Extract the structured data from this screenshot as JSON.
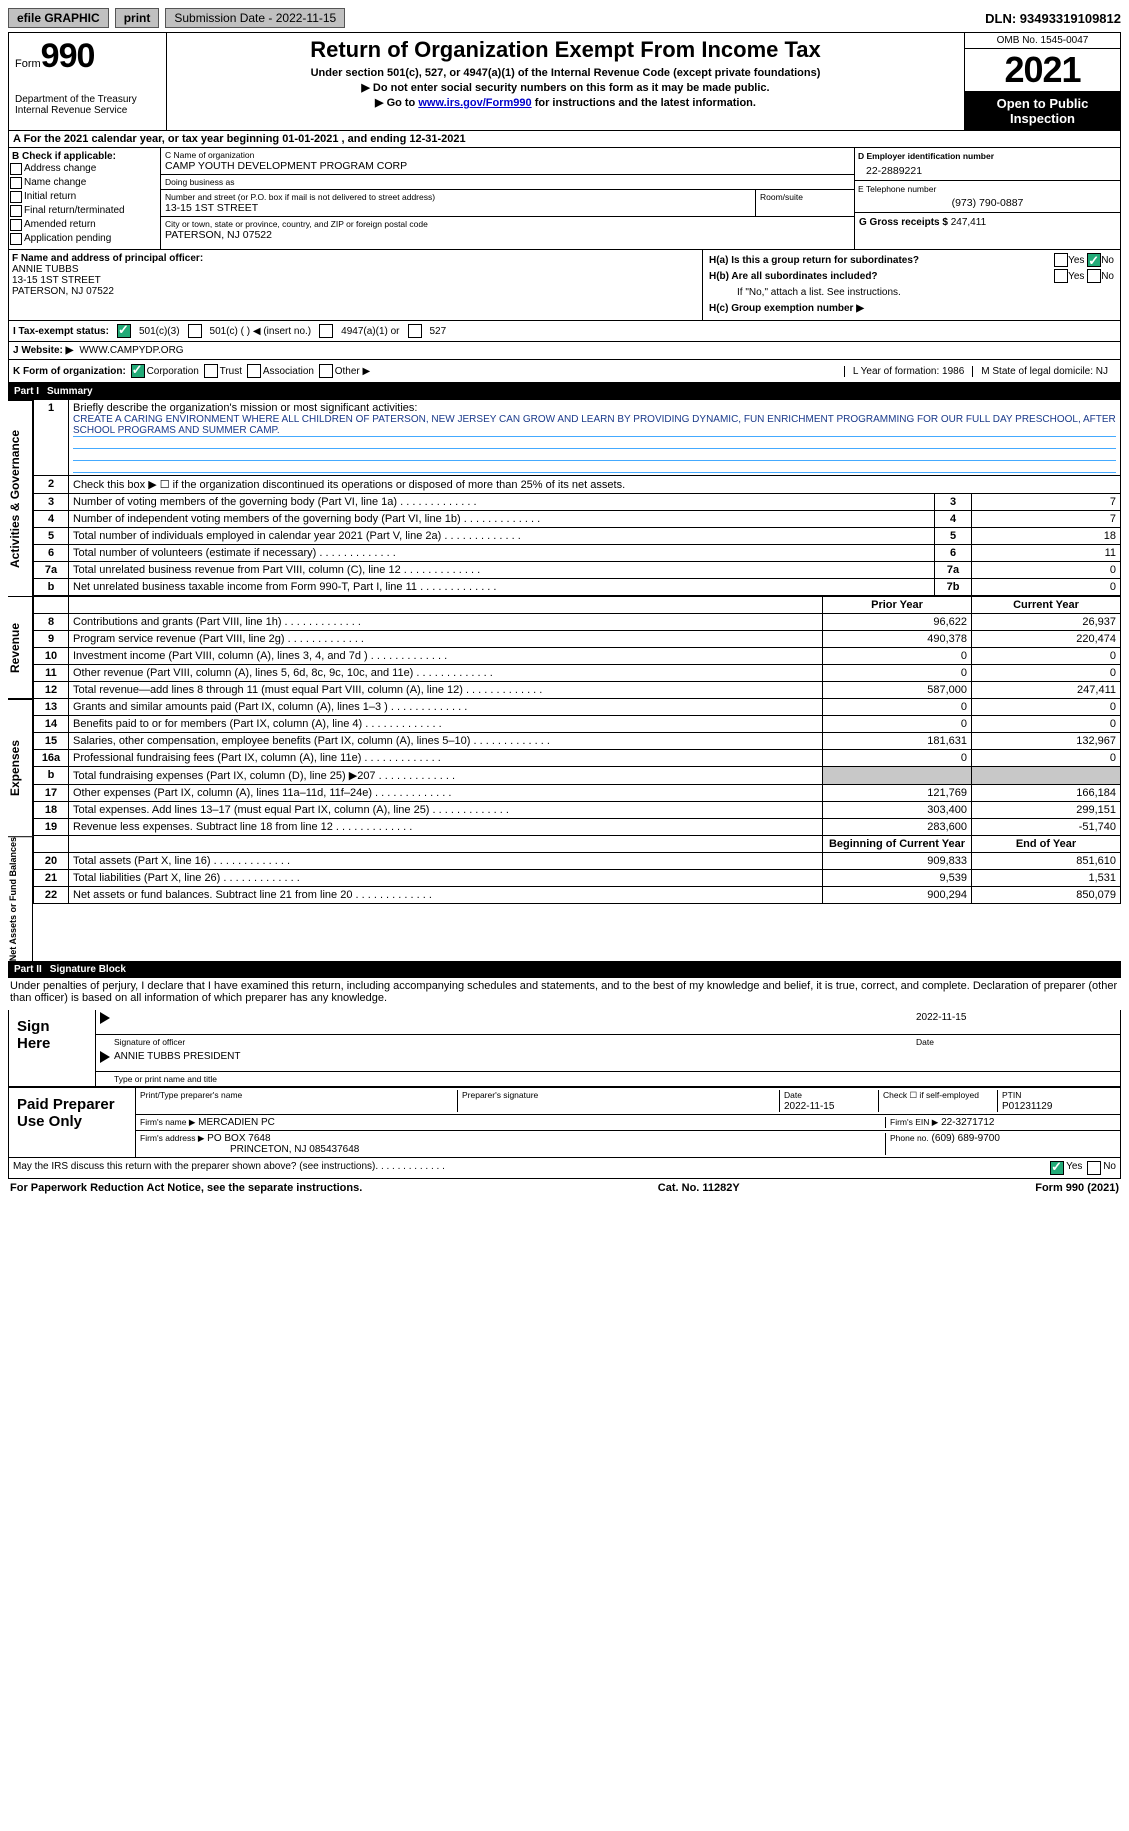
{
  "topbar": {
    "efile": "efile GRAPHIC",
    "print": "print",
    "subdate_label": "Submission Date - 2022-11-15",
    "dln": "DLN: 93493319109812"
  },
  "header": {
    "form_word": "Form",
    "form_num": "990",
    "dept": "Department of the Treasury\nInternal Revenue Service",
    "title": "Return of Organization Exempt From Income Tax",
    "subtitle": "Under section 501(c), 527, or 4947(a)(1) of the Internal Revenue Code (except private foundations)",
    "line1": "▶ Do not enter social security numbers on this form as it may be made public.",
    "line2_pre": "▶ Go to ",
    "line2_link": "www.irs.gov/Form990",
    "line2_post": " for instructions and the latest information.",
    "omb": "OMB No. 1545-0047",
    "year": "2021",
    "open": "Open to Public Inspection"
  },
  "rowA": "A  For the 2021 calendar year, or tax year beginning 01-01-2021   , and ending 12-31-2021",
  "B": {
    "label": "B Check if applicable:",
    "opts": [
      "Address change",
      "Name change",
      "Initial return",
      "Final return/terminated",
      "Amended return",
      "Application pending"
    ]
  },
  "C": {
    "name_label": "C Name of organization",
    "name": "CAMP YOUTH DEVELOPMENT PROGRAM CORP",
    "dba_label": "Doing business as",
    "dba": "",
    "addr_label": "Number and street (or P.O. box if mail is not delivered to street address)",
    "addr": "13-15 1ST STREET",
    "room_label": "Room/suite",
    "city_label": "City or town, state or province, country, and ZIP or foreign postal code",
    "city": "PATERSON, NJ  07522"
  },
  "D": {
    "label": "D Employer identification number",
    "val": "22-2889221"
  },
  "E": {
    "label": "E Telephone number",
    "val": "(973) 790-0887"
  },
  "G": {
    "label": "G Gross receipts $",
    "val": "247,411"
  },
  "F": {
    "label": "F  Name and address of principal officer:",
    "name": "ANNIE TUBBS",
    "addr1": "13-15 1ST STREET",
    "addr2": "PATERSON, NJ  07522"
  },
  "H": {
    "a": "H(a)  Is this a group return for subordinates?",
    "b": "H(b)  Are all subordinates included?",
    "bnote": "If \"No,\" attach a list. See instructions.",
    "c": "H(c)  Group exemption number ▶",
    "yes": "Yes",
    "no": "No"
  },
  "I": {
    "label": "I   Tax-exempt status:",
    "o1": "501(c)(3)",
    "o2": "501(c) (  ) ◀ (insert no.)",
    "o3": "4947(a)(1) or",
    "o4": "527"
  },
  "J": {
    "label": "J   Website: ▶",
    "val": "WWW.CAMPYDP.ORG"
  },
  "K": {
    "label": "K Form of organization:",
    "o1": "Corporation",
    "o2": "Trust",
    "o3": "Association",
    "o4": "Other ▶"
  },
  "L": {
    "label": "L Year of formation: 1986"
  },
  "M": {
    "label": "M State of legal domicile: NJ"
  },
  "part1": {
    "num": "Part I",
    "title": "Summary"
  },
  "summary": {
    "l1": "Briefly describe the organization's mission or most significant activities:",
    "mission": "CREATE A CARING ENVIRONMENT WHERE ALL CHILDREN OF PATERSON, NEW JERSEY CAN GROW AND LEARN BY PROVIDING DYNAMIC, FUN ENRICHMENT PROGRAMMING FOR OUR FULL DAY PRESCHOOL, AFTER SCHOOL PROGRAMS AND SUMMER CAMP.",
    "l2": "Check this box ▶ ☐ if the organization discontinued its operations or disposed of more than 25% of its net assets.",
    "rows_gov": [
      {
        "n": "3",
        "t": "Number of voting members of the governing body (Part VI, line 1a)",
        "box": "3",
        "v": "7"
      },
      {
        "n": "4",
        "t": "Number of independent voting members of the governing body (Part VI, line 1b)",
        "box": "4",
        "v": "7"
      },
      {
        "n": "5",
        "t": "Total number of individuals employed in calendar year 2021 (Part V, line 2a)",
        "box": "5",
        "v": "18"
      },
      {
        "n": "6",
        "t": "Total number of volunteers (estimate if necessary)",
        "box": "6",
        "v": "11"
      },
      {
        "n": "7a",
        "t": "Total unrelated business revenue from Part VIII, column (C), line 12",
        "box": "7a",
        "v": "0"
      },
      {
        "n": "b",
        "t": "Net unrelated business taxable income from Form 990-T, Part I, line 11",
        "box": "7b",
        "v": "0"
      }
    ],
    "hdr_prior": "Prior Year",
    "hdr_cur": "Current Year",
    "rows_rev": [
      {
        "n": "8",
        "t": "Contributions and grants (Part VIII, line 1h)",
        "p": "96,622",
        "c": "26,937"
      },
      {
        "n": "9",
        "t": "Program service revenue (Part VIII, line 2g)",
        "p": "490,378",
        "c": "220,474"
      },
      {
        "n": "10",
        "t": "Investment income (Part VIII, column (A), lines 3, 4, and 7d )",
        "p": "0",
        "c": "0"
      },
      {
        "n": "11",
        "t": "Other revenue (Part VIII, column (A), lines 5, 6d, 8c, 9c, 10c, and 11e)",
        "p": "0",
        "c": "0"
      },
      {
        "n": "12",
        "t": "Total revenue—add lines 8 through 11 (must equal Part VIII, column (A), line 12)",
        "p": "587,000",
        "c": "247,411"
      }
    ],
    "rows_exp": [
      {
        "n": "13",
        "t": "Grants and similar amounts paid (Part IX, column (A), lines 1–3 )",
        "p": "0",
        "c": "0"
      },
      {
        "n": "14",
        "t": "Benefits paid to or for members (Part IX, column (A), line 4)",
        "p": "0",
        "c": "0"
      },
      {
        "n": "15",
        "t": "Salaries, other compensation, employee benefits (Part IX, column (A), lines 5–10)",
        "p": "181,631",
        "c": "132,967"
      },
      {
        "n": "16a",
        "t": "Professional fundraising fees (Part IX, column (A), line 11e)",
        "p": "0",
        "c": "0"
      },
      {
        "n": "b",
        "t": "Total fundraising expenses (Part IX, column (D), line 25) ▶207",
        "p": "",
        "c": "",
        "shaded": true
      },
      {
        "n": "17",
        "t": "Other expenses (Part IX, column (A), lines 11a–11d, 11f–24e)",
        "p": "121,769",
        "c": "166,184"
      },
      {
        "n": "18",
        "t": "Total expenses. Add lines 13–17 (must equal Part IX, column (A), line 25)",
        "p": "303,400",
        "c": "299,151"
      },
      {
        "n": "19",
        "t": "Revenue less expenses. Subtract line 18 from line 12",
        "p": "283,600",
        "c": "-51,740"
      }
    ],
    "hdr_beg": "Beginning of Current Year",
    "hdr_end": "End of Year",
    "rows_net": [
      {
        "n": "20",
        "t": "Total assets (Part X, line 16)",
        "p": "909,833",
        "c": "851,610"
      },
      {
        "n": "21",
        "t": "Total liabilities (Part X, line 26)",
        "p": "9,539",
        "c": "1,531"
      },
      {
        "n": "22",
        "t": "Net assets or fund balances. Subtract line 21 from line 20",
        "p": "900,294",
        "c": "850,079"
      }
    ],
    "side1": "Activities & Governance",
    "side2": "Revenue",
    "side3": "Expenses",
    "side4": "Net Assets or Fund Balances"
  },
  "part2": {
    "num": "Part II",
    "title": "Signature Block"
  },
  "sig": {
    "decl": "Under penalties of perjury, I declare that I have examined this return, including accompanying schedules and statements, and to the best of my knowledge and belief, it is true, correct, and complete. Declaration of preparer (other than officer) is based on all information of which preparer has any knowledge.",
    "sign_here": "Sign Here",
    "sig_officer": "Signature of officer",
    "date": "Date",
    "date_v": "2022-11-15",
    "name_title": "ANNIE TUBBS PRESIDENT",
    "name_label": "Type or print name and title",
    "paid": "Paid Preparer Use Only",
    "p_name_l": "Print/Type preparer's name",
    "p_sig_l": "Preparer's signature",
    "p_date_l": "Date",
    "p_date_v": "2022-11-15",
    "p_self": "Check ☐ if self-employed",
    "p_ptin_l": "PTIN",
    "p_ptin": "P01231129",
    "firm_name_l": "Firm's name    ▶",
    "firm_name": "MERCADIEN PC",
    "firm_ein_l": "Firm's EIN ▶",
    "firm_ein": "22-3271712",
    "firm_addr_l": "Firm's address ▶",
    "firm_addr": "PO BOX 7648",
    "firm_addr2": "PRINCETON, NJ  085437648",
    "phone_l": "Phone no.",
    "phone": "(609) 689-9700",
    "discuss": "May the IRS discuss this return with the preparer shown above? (see instructions)"
  },
  "footer": {
    "l": "For Paperwork Reduction Act Notice, see the separate instructions.",
    "m": "Cat. No. 11282Y",
    "r": "Form 990 (2021)"
  }
}
